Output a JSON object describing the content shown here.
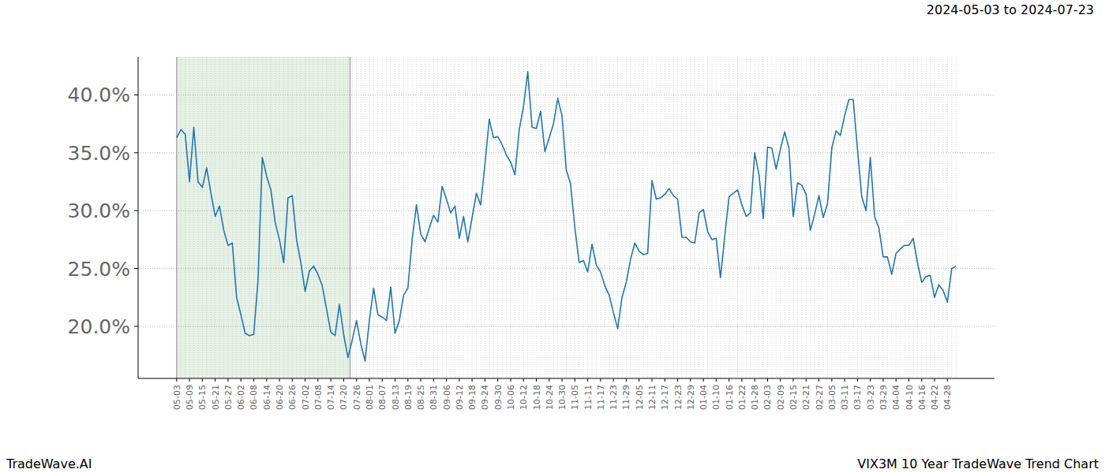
{
  "chart_data": {
    "type": "line",
    "title": "VIX3M 10 Year TradeWave Trend Chart",
    "subtitle": "2024-05-03 to 2024-07-23",
    "annotations": [
      "TradeWave.AI"
    ],
    "highlight": {
      "start": "2024-05-03",
      "end": "2024-07-23"
    },
    "color": "#1f77b4",
    "grid": true,
    "ylim": [
      15.5,
      43.3
    ],
    "yticks": [
      {
        "value": 20,
        "label": "20.0%"
      },
      {
        "value": 25,
        "label": "25.0%"
      },
      {
        "value": 30,
        "label": "30.0%"
      },
      {
        "value": 35,
        "label": "35.0%"
      },
      {
        "value": 40,
        "label": "40.0%"
      }
    ],
    "categories": [
      "05-03",
      null,
      null,
      "05-09",
      null,
      null,
      "05-15",
      null,
      null,
      "05-21",
      null,
      null,
      "05-27",
      null,
      null,
      "06-02",
      null,
      null,
      "06-08",
      null,
      null,
      "06-14",
      null,
      null,
      "06-20",
      null,
      null,
      "06-26",
      null,
      null,
      "07-02",
      null,
      null,
      "07-08",
      null,
      null,
      "07-14",
      null,
      null,
      "07-20",
      null,
      null,
      "07-26",
      null,
      null,
      "08-01",
      null,
      null,
      "08-07",
      null,
      null,
      "08-13",
      null,
      null,
      "08-19",
      null,
      null,
      "08-25",
      null,
      null,
      "08-31",
      null,
      null,
      "09-06",
      null,
      null,
      "09-12",
      null,
      null,
      "09-18",
      null,
      null,
      "09-24",
      null,
      null,
      "09-30",
      null,
      null,
      "10-06",
      null,
      null,
      "10-12",
      null,
      null,
      "10-18",
      null,
      null,
      "10-24",
      null,
      null,
      "10-30",
      null,
      null,
      "11-05",
      null,
      null,
      "11-11",
      null,
      null,
      "11-17",
      null,
      null,
      "11-23",
      null,
      null,
      "11-29",
      null,
      null,
      "12-05",
      null,
      null,
      "12-11",
      null,
      null,
      "12-17",
      null,
      null,
      "12-23",
      null,
      null,
      "12-29",
      null,
      null,
      "01-04",
      null,
      null,
      "01-10",
      null,
      null,
      "01-16",
      null,
      null,
      "01-22",
      null,
      null,
      "01-28",
      null,
      null,
      "02-03",
      null,
      null,
      "02-09",
      null,
      null,
      "02-15",
      null,
      null,
      "02-21",
      null,
      null,
      "02-27",
      null,
      null,
      "03-05",
      null,
      null,
      "03-11",
      null,
      null,
      "03-17",
      null,
      null,
      "03-23",
      null,
      null,
      "03-29",
      null,
      null,
      "04-04",
      null,
      null,
      "04-10",
      null,
      null,
      "04-16",
      null,
      null,
      "04-22",
      null,
      null,
      "04-28",
      null,
      null
    ],
    "values": [
      36.3,
      37.0,
      36.6,
      32.5,
      37.2,
      32.5,
      32.0,
      33.7,
      31.5,
      29.5,
      30.4,
      28.3,
      27.0,
      27.2,
      22.5,
      21.0,
      19.4,
      19.2,
      19.3,
      24.0,
      34.6,
      33.0,
      31.8,
      29.0,
      27.5,
      25.5,
      31.1,
      31.3,
      27.5,
      25.5,
      23.0,
      24.8,
      25.2,
      24.5,
      23.5,
      21.5,
      19.5,
      19.2,
      21.9,
      19.3,
      17.3,
      18.8,
      20.5,
      18.5,
      17.0,
      20.5,
      23.3,
      21.0,
      20.8,
      20.5,
      23.4,
      19.4,
      20.5,
      22.7,
      23.3,
      27.5,
      30.5,
      28.0,
      27.3,
      28.5,
      29.6,
      29.0,
      32.1,
      31.0,
      29.8,
      30.4,
      27.6,
      29.5,
      27.3,
      29.4,
      31.5,
      30.5,
      34.0,
      37.9,
      36.3,
      36.4,
      35.7,
      34.8,
      34.2,
      33.1,
      37.0,
      39.0,
      42.0,
      37.2,
      37.1,
      38.6,
      35.1,
      36.3,
      37.5,
      39.7,
      38.2,
      33.5,
      32.3,
      28.5,
      25.5,
      25.7,
      24.7,
      27.1,
      25.3,
      24.7,
      23.5,
      22.7,
      21.2,
      19.8,
      22.5,
      23.8,
      25.8,
      27.2,
      26.5,
      26.2,
      26.3,
      32.6,
      31.0,
      31.1,
      31.4,
      31.9,
      31.3,
      31.0,
      27.7,
      27.7,
      27.3,
      27.2,
      29.8,
      30.1,
      28.2,
      27.5,
      27.6,
      24.2,
      27.8,
      31.2,
      31.5,
      31.8,
      30.5,
      29.5,
      29.8,
      35.0,
      33.1,
      29.3,
      35.5,
      35.4,
      33.6,
      35.3,
      36.8,
      35.4,
      29.5,
      32.4,
      32.2,
      31.4,
      28.3,
      29.7,
      31.3,
      29.4,
      30.6,
      35.4,
      36.9,
      36.5,
      38.2,
      39.6,
      39.6,
      35.3,
      31.2,
      30.0,
      34.6,
      29.5,
      28.5,
      26.0,
      26.0,
      24.5,
      26.3,
      26.7,
      27.0,
      27.0,
      27.6,
      25.5,
      23.8,
      24.3,
      24.4,
      22.5,
      23.6,
      23.1,
      22.1,
      25.0,
      25.2
    ]
  }
}
